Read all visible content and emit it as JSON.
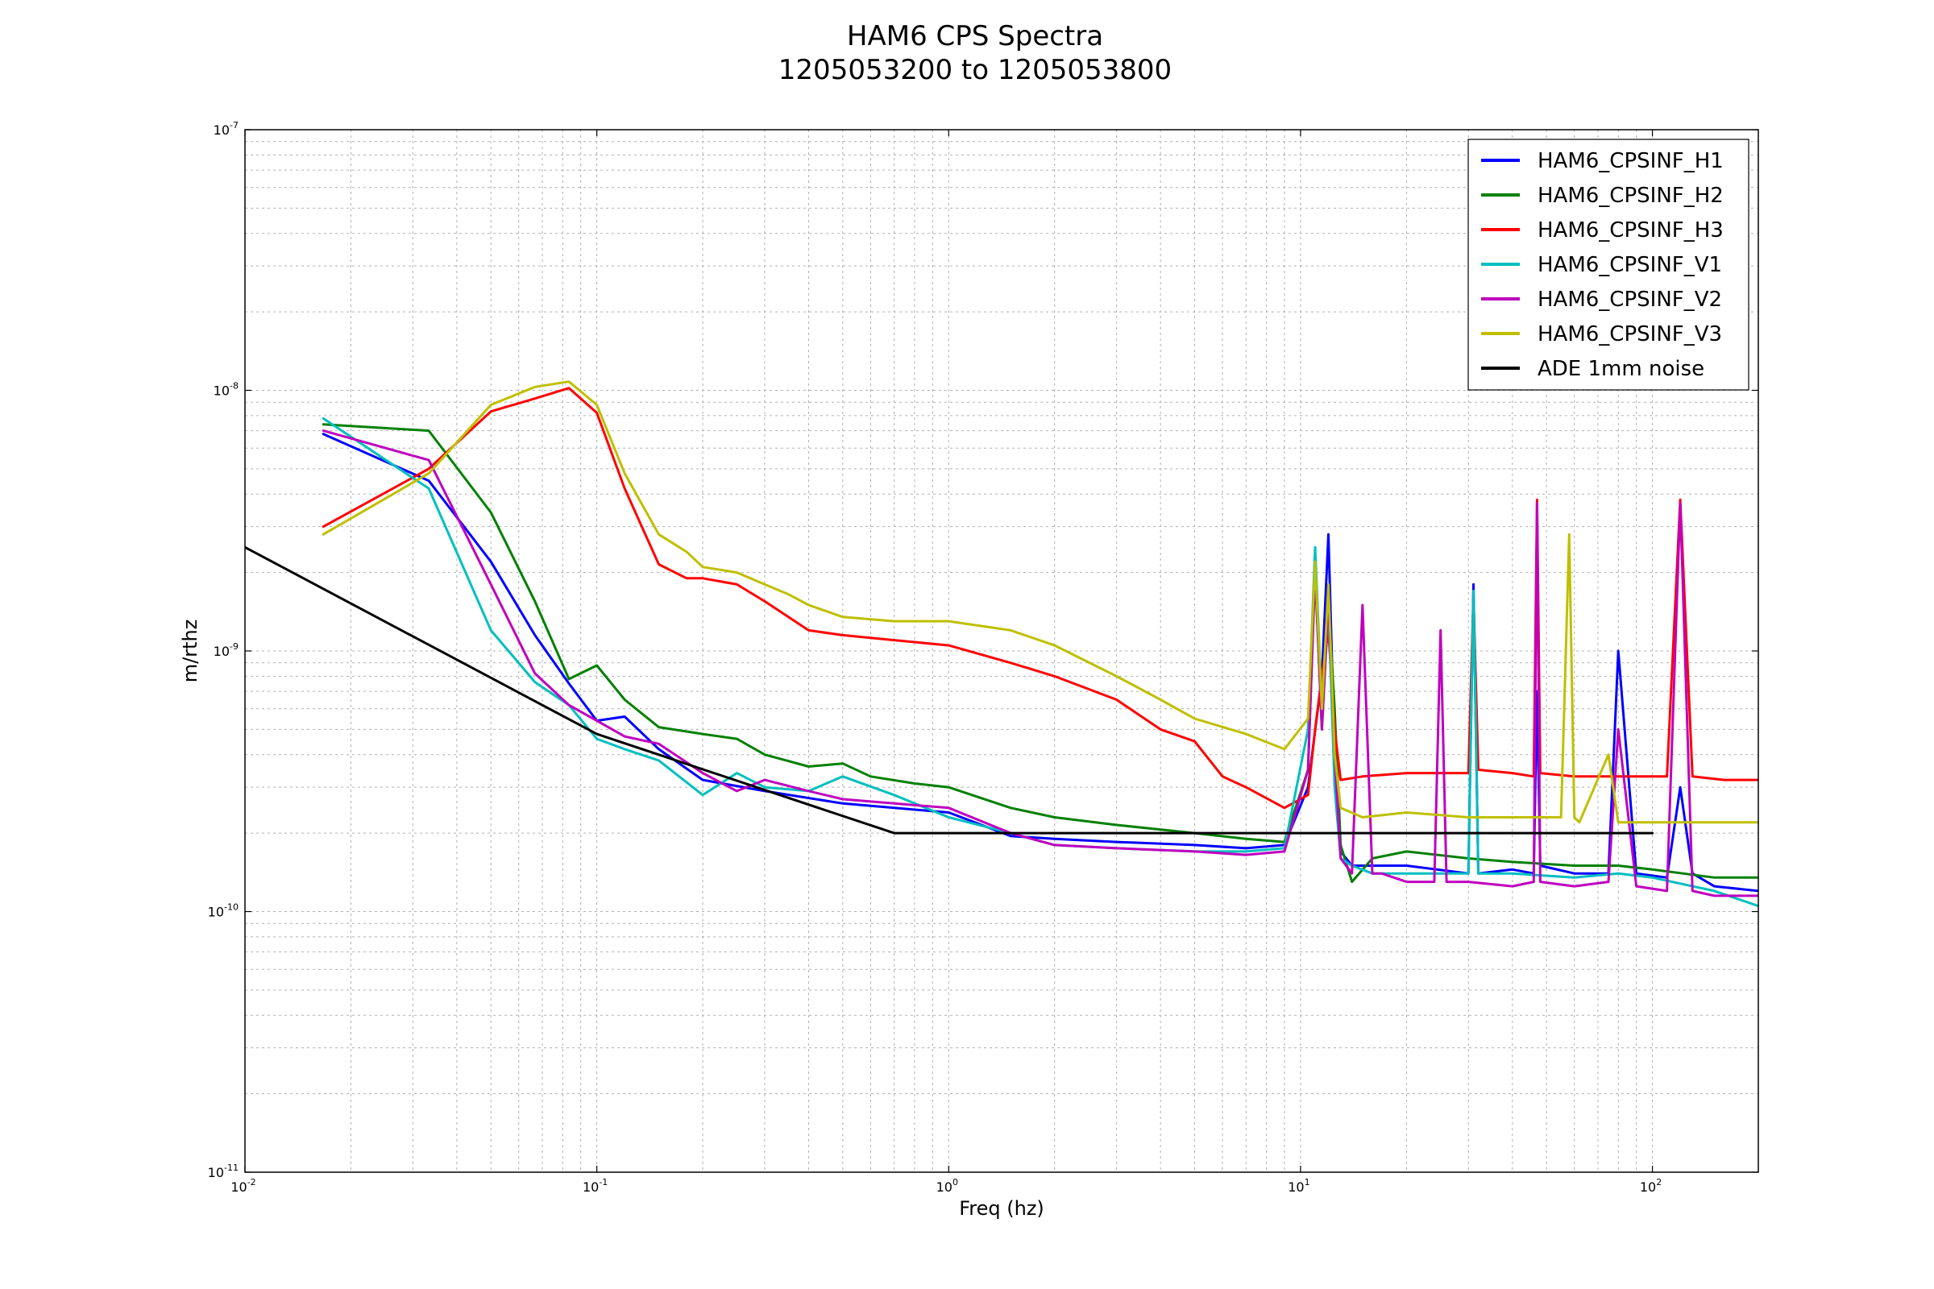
{
  "chart_data": {
    "type": "line",
    "title": "HAM6 CPS Spectra",
    "subtitle": "1205053200 to 1205053800",
    "xlabel": "Freq (hz)",
    "ylabel": "m/rthz",
    "xscale": "log",
    "yscale": "log",
    "xlim": [
      0.01,
      200
    ],
    "ylim": [
      1e-11,
      1e-07
    ],
    "grid": true,
    "legend_position": "top-right",
    "x_ticks": [
      {
        "base": "10",
        "exp": "-2",
        "value": 0.01
      },
      {
        "base": "10",
        "exp": "-1",
        "value": 0.1
      },
      {
        "base": "10",
        "exp": "0",
        "value": 1
      },
      {
        "base": "10",
        "exp": "1",
        "value": 10
      },
      {
        "base": "10",
        "exp": "2",
        "value": 100
      }
    ],
    "y_ticks": [
      {
        "base": "10",
        "exp": "-11",
        "value": 1e-11
      },
      {
        "base": "10",
        "exp": "-10",
        "value": 1e-10
      },
      {
        "base": "10",
        "exp": "-9",
        "value": 1e-09
      },
      {
        "base": "10",
        "exp": "-8",
        "value": 1e-08
      },
      {
        "base": "10",
        "exp": "-7",
        "value": 1e-07
      }
    ],
    "series": [
      {
        "name": "HAM6_CPSINF_H1",
        "color": "#0000ff",
        "x": [
          0.0167,
          0.0333,
          0.05,
          0.0667,
          0.0833,
          0.1,
          0.12,
          0.15,
          0.2,
          0.3,
          0.5,
          0.7,
          1,
          1.5,
          2,
          3,
          5,
          7,
          9,
          10.5,
          11.5,
          12,
          12.5,
          13,
          14,
          20,
          30,
          31,
          32,
          40,
          46,
          47,
          48,
          60,
          75,
          80,
          90,
          110,
          120,
          130,
          150,
          200
        ],
        "y": [
          6.8e-09,
          4.5e-09,
          2.2e-09,
          1.15e-09,
          7.5e-10,
          5.4e-10,
          5.6e-10,
          4.2e-10,
          3.2e-10,
          2.9e-10,
          2.6e-10,
          2.5e-10,
          2.4e-10,
          1.95e-10,
          1.9e-10,
          1.85e-10,
          1.8e-10,
          1.75e-10,
          1.8e-10,
          3e-10,
          8e-10,
          2.8e-09,
          4e-10,
          1.7e-10,
          1.5e-10,
          1.5e-10,
          1.4e-10,
          1.8e-09,
          1.4e-10,
          1.45e-10,
          1.4e-10,
          7e-10,
          1.5e-10,
          1.4e-10,
          1.4e-10,
          1e-09,
          1.4e-10,
          1.35e-10,
          3e-10,
          1.4e-10,
          1.25e-10,
          1.2e-10
        ]
      },
      {
        "name": "HAM6_CPSINF_H2",
        "color": "#008000",
        "x": [
          0.0167,
          0.0333,
          0.05,
          0.0667,
          0.0833,
          0.1,
          0.12,
          0.15,
          0.2,
          0.25,
          0.3,
          0.4,
          0.5,
          0.6,
          0.8,
          1,
          1.5,
          2,
          3,
          5,
          7,
          9,
          10.5,
          11,
          11.5,
          12,
          12.5,
          13,
          14,
          16,
          20,
          30,
          40,
          60,
          80,
          100,
          150,
          200
        ],
        "y": [
          7.4e-09,
          7e-09,
          3.4e-09,
          1.55e-09,
          7.8e-10,
          8.8e-10,
          6.5e-10,
          5.1e-10,
          4.8e-10,
          4.6e-10,
          4e-10,
          3.6e-10,
          3.7e-10,
          3.3e-10,
          3.1e-10,
          3e-10,
          2.5e-10,
          2.3e-10,
          2.15e-10,
          2e-10,
          1.9e-10,
          1.85e-10,
          3.5e-10,
          2e-09,
          5e-10,
          1.5e-09,
          6e-10,
          1.8e-10,
          1.3e-10,
          1.6e-10,
          1.7e-10,
          1.6e-10,
          1.55e-10,
          1.5e-10,
          1.5e-10,
          1.45e-10,
          1.35e-10,
          1.35e-10
        ]
      },
      {
        "name": "HAM6_CPSINF_H3",
        "color": "#ff0000",
        "x": [
          0.0167,
          0.0333,
          0.05,
          0.0667,
          0.0833,
          0.1,
          0.12,
          0.15,
          0.18,
          0.2,
          0.25,
          0.3,
          0.4,
          0.5,
          0.7,
          1,
          1.5,
          2,
          3,
          4,
          5,
          6,
          7,
          9,
          10.5,
          11,
          11.5,
          12,
          12.5,
          13,
          15,
          20,
          30,
          31,
          32,
          40,
          46,
          47,
          48,
          60,
          80,
          110,
          120,
          130,
          160,
          200
        ],
        "y": [
          3e-09,
          5e-09,
          8.3e-09,
          9.3e-09,
          1.02e-08,
          8.2e-09,
          4.2e-09,
          2.15e-09,
          1.9e-09,
          1.9e-09,
          1.8e-09,
          1.55e-09,
          1.2e-09,
          1.15e-09,
          1.1e-09,
          1.05e-09,
          9e-10,
          8e-10,
          6.5e-10,
          5e-10,
          4.5e-10,
          3.3e-10,
          3e-10,
          2.5e-10,
          2.8e-10,
          5e-10,
          8e-10,
          1.2e-09,
          5e-10,
          3.2e-10,
          3.3e-10,
          3.4e-10,
          3.4e-10,
          1.6e-09,
          3.5e-10,
          3.4e-10,
          3.3e-10,
          3.8e-09,
          3.4e-10,
          3.3e-10,
          3.3e-10,
          3.3e-10,
          3.8e-09,
          3.3e-10,
          3.2e-10,
          3.2e-10
        ]
      },
      {
        "name": "HAM6_CPSINF_V1",
        "color": "#00bfbf",
        "x": [
          0.0167,
          0.0333,
          0.05,
          0.0667,
          0.0833,
          0.1,
          0.12,
          0.15,
          0.2,
          0.25,
          0.3,
          0.4,
          0.5,
          0.7,
          1,
          1.5,
          2,
          3,
          5,
          7,
          9,
          10.5,
          11,
          11.5,
          12,
          12.5,
          13,
          14,
          16,
          20,
          30,
          31,
          32,
          40,
          60,
          80,
          100,
          150,
          200
        ],
        "y": [
          7.8e-09,
          4.2e-09,
          1.2e-09,
          7.6e-10,
          6.2e-10,
          4.6e-10,
          4.2e-10,
          3.8e-10,
          2.8e-10,
          3.4e-10,
          3e-10,
          2.9e-10,
          3.3e-10,
          2.8e-10,
          2.3e-10,
          2e-10,
          1.8e-10,
          1.75e-10,
          1.7e-10,
          1.7e-10,
          1.75e-10,
          5e-10,
          2.5e-09,
          6e-10,
          1.5e-09,
          3e-10,
          1.6e-10,
          1.5e-10,
          1.4e-10,
          1.4e-10,
          1.4e-10,
          1.7e-09,
          1.4e-10,
          1.4e-10,
          1.35e-10,
          1.4e-10,
          1.35e-10,
          1.2e-10,
          1.05e-10
        ]
      },
      {
        "name": "HAM6_CPSINF_V2",
        "color": "#bf00bf",
        "x": [
          0.0167,
          0.0333,
          0.05,
          0.0667,
          0.0833,
          0.1,
          0.12,
          0.15,
          0.2,
          0.25,
          0.3,
          0.4,
          0.5,
          0.7,
          1,
          1.5,
          2,
          3,
          5,
          7,
          9,
          10.5,
          11,
          11.5,
          12,
          12.5,
          13,
          14,
          15,
          16,
          17,
          20,
          24,
          25,
          26,
          30,
          40,
          46,
          47,
          48,
          60,
          75,
          80,
          90,
          110,
          120,
          130,
          150,
          200
        ],
        "y": [
          7e-09,
          5.4e-09,
          1.8e-09,
          8.2e-10,
          6.2e-10,
          5.4e-10,
          4.7e-10,
          4.4e-10,
          3.4e-10,
          2.9e-10,
          3.2e-10,
          2.9e-10,
          2.7e-10,
          2.6e-10,
          2.5e-10,
          2e-10,
          1.8e-10,
          1.75e-10,
          1.7e-10,
          1.65e-10,
          1.7e-10,
          3.5e-10,
          2.1e-09,
          5e-10,
          1.6e-09,
          4e-10,
          1.6e-10,
          1.4e-10,
          1.5e-09,
          1.4e-10,
          1.4e-10,
          1.3e-10,
          1.3e-10,
          1.2e-09,
          1.3e-10,
          1.3e-10,
          1.25e-10,
          1.3e-10,
          3.7e-09,
          1.3e-10,
          1.25e-10,
          1.3e-10,
          5e-10,
          1.25e-10,
          1.2e-10,
          3.7e-09,
          1.2e-10,
          1.15e-10,
          1.15e-10
        ]
      },
      {
        "name": "HAM6_CPSINF_V3",
        "color": "#bfbf00",
        "x": [
          0.0167,
          0.0333,
          0.05,
          0.0667,
          0.0833,
          0.1,
          0.12,
          0.15,
          0.18,
          0.2,
          0.25,
          0.3,
          0.35,
          0.4,
          0.5,
          0.7,
          1,
          1.5,
          2,
          3,
          4,
          5,
          7,
          9,
          10.5,
          11,
          11.5,
          12,
          12.5,
          13,
          15,
          20,
          30,
          40,
          55,
          58,
          60,
          62,
          75,
          80,
          90,
          100,
          120,
          150,
          200
        ],
        "y": [
          2.8e-09,
          4.8e-09,
          8.8e-09,
          1.03e-08,
          1.08e-08,
          8.8e-09,
          4.8e-09,
          2.8e-09,
          2.4e-09,
          2.1e-09,
          2e-09,
          1.8e-09,
          1.65e-09,
          1.5e-09,
          1.35e-09,
          1.3e-09,
          1.3e-09,
          1.2e-09,
          1.05e-09,
          8e-10,
          6.5e-10,
          5.5e-10,
          4.8e-10,
          4.2e-10,
          5.5e-10,
          2.2e-09,
          6e-10,
          1.8e-09,
          4e-10,
          2.5e-10,
          2.3e-10,
          2.4e-10,
          2.3e-10,
          2.3e-10,
          2.3e-10,
          2.8e-09,
          2.3e-10,
          2.2e-10,
          4e-10,
          2.2e-10,
          2.2e-10,
          2.2e-10,
          2.2e-10,
          2.2e-10,
          2.2e-10
        ]
      },
      {
        "name": "ADE 1mm noise",
        "color": "#000000",
        "x": [
          0.01,
          0.1,
          0.7,
          1,
          100
        ],
        "y": [
          2.5e-09,
          4.8e-10,
          2e-10,
          2e-10,
          2e-10
        ]
      }
    ]
  }
}
